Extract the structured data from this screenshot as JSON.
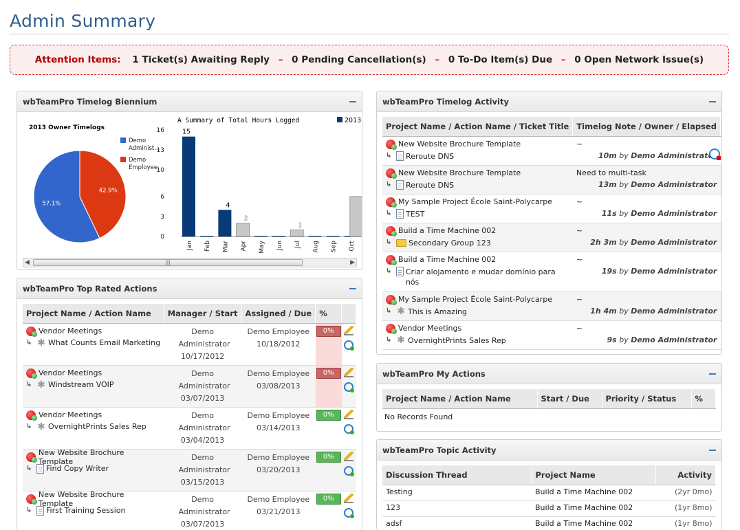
{
  "page": {
    "title": "Admin Summary"
  },
  "attention": {
    "label": "Attention Items:",
    "items": [
      "1 Ticket(s) Awaiting Reply",
      "0 Pending Cancellation(s)",
      "0 To-Do Item(s) Due",
      "0 Open Network Issue(s)"
    ],
    "separator": "–"
  },
  "biennium": {
    "title": "wbTeamPro Timelog Biennium",
    "pie_title": "2013 Owner Timelogs"
  },
  "chart_data": [
    {
      "type": "pie",
      "title": "2013 Owner Timelogs",
      "slices": [
        {
          "label": "Demo Administ...",
          "value": 57.1,
          "display": "57.1%",
          "color": "#3366cc"
        },
        {
          "label": "Demo Employee",
          "value": 42.9,
          "display": "42.9%",
          "color": "#dc3912"
        }
      ],
      "legend": "right"
    },
    {
      "type": "bar",
      "title": "A Summary of Total Hours Logged",
      "categories": [
        "Jan",
        "Feb",
        "Mar",
        "Apr",
        "May",
        "Jun",
        "Jul",
        "Aug",
        "Sep",
        "Oct"
      ],
      "series": [
        {
          "name": "2013",
          "color": "#083a7a",
          "values": [
            15,
            0,
            4,
            0,
            0,
            0,
            0,
            0,
            0,
            0
          ]
        },
        {
          "name": "",
          "color": "#c8c8c8",
          "values": [
            0,
            0,
            0,
            2,
            0,
            0,
            1,
            0,
            0,
            6
          ]
        }
      ],
      "yticks": [
        "0",
        "3",
        "6",
        "10",
        "13",
        "16"
      ],
      "ylim": [
        0,
        16
      ],
      "data_labels": {
        "jan": "15",
        "mar": "4",
        "apr": "2",
        "jul": "1"
      },
      "legend": "top-right"
    }
  ],
  "top_rated": {
    "title": "wbTeamPro Top Rated Actions",
    "headers": [
      "Project Name / Action Name",
      "Manager / Start",
      "Assigned / Due",
      "%"
    ],
    "rows": [
      {
        "project": "Vendor Meetings",
        "action": "What Counts Email Marketing",
        "icon": "gear-icon",
        "manager": "Demo Administrator",
        "start": "10/17/2012",
        "assigned": "Demo Employee",
        "due": "10/18/2012",
        "pct": "0%",
        "status": "red"
      },
      {
        "project": "Vendor Meetings",
        "action": "Windstream VOIP",
        "icon": "gear-icon",
        "manager": "Demo Administrator",
        "start": "03/07/2013",
        "assigned": "Demo Employee",
        "due": "03/08/2013",
        "pct": "0%",
        "status": "red"
      },
      {
        "project": "Vendor Meetings",
        "action": "OvernightPrints Sales Rep",
        "icon": "gear-icon",
        "manager": "Demo Administrator",
        "start": "03/04/2013",
        "assigned": "Demo Employee",
        "due": "03/14/2013",
        "pct": "0%",
        "status": "green"
      },
      {
        "project": "New Website Brochure Template",
        "action": "Find Copy Writer",
        "icon": "doc-icon",
        "manager": "Demo Administrator",
        "start": "03/15/2013",
        "assigned": "Demo Employee",
        "due": "03/20/2013",
        "pct": "0%",
        "status": "green"
      },
      {
        "project": "New Website Brochure Template",
        "action": "First Training Session",
        "icon": "doc-icon",
        "manager": "Demo Administrator",
        "start": "03/07/2013",
        "assigned": "Demo Employee",
        "due": "03/21/2013",
        "pct": "0%",
        "status": "green"
      }
    ]
  },
  "timelog": {
    "title": "wbTeamPro Timelog Activity",
    "headers": [
      "Project Name / Action Name / Ticket Title",
      "Timelog Note / Owner / Elapsed"
    ],
    "by": "by",
    "rows": [
      {
        "project": "New Website Brochure Template",
        "action": "Reroute DNS",
        "icon": "doc-icon",
        "note": "~",
        "elapsed": "10m",
        "owner": "Demo Administrator",
        "extra": "clock"
      },
      {
        "project": "New Website Brochure Template",
        "action": "Reroute DNS",
        "icon": "doc-icon",
        "note": "Need to multi-task",
        "elapsed": "13m",
        "owner": "Demo Administrator"
      },
      {
        "project": "My Sample Project École Saint-Polycarpe",
        "action": "TEST",
        "icon": "doc-icon",
        "note": "~",
        "elapsed": "11s",
        "owner": "Demo Administrator"
      },
      {
        "project": "Build a Time Machine 002",
        "action": "Secondary Group 123",
        "icon": "folder-icon",
        "note": "~",
        "elapsed": "2h 3m",
        "owner": "Demo Administrator"
      },
      {
        "project": "Build a Time Machine 002",
        "action": "Criar alojamento e mudar domínio para nós",
        "icon": "doc-icon",
        "note": "~",
        "elapsed": "19s",
        "owner": "Demo Administrator"
      },
      {
        "project": "My Sample Project École Saint-Polycarpe",
        "action": "This is Amazing",
        "icon": "gear-icon",
        "note": "~",
        "elapsed": "1h 4m",
        "owner": "Demo Administrator"
      },
      {
        "project": "Vendor Meetings",
        "action": "OvernightPrints Sales Rep",
        "icon": "gear-icon",
        "note": "~",
        "elapsed": "9s",
        "owner": "Demo Administrator"
      }
    ]
  },
  "my_actions": {
    "title": "wbTeamPro My Actions",
    "headers": [
      "Project Name / Action Name",
      "Start / Due",
      "Priority / Status",
      "%"
    ],
    "empty": "No Records Found"
  },
  "topic": {
    "title": "wbTeamPro Topic Activity",
    "headers": [
      "Discussion Thread",
      "Project Name",
      "Activity"
    ],
    "rows": [
      {
        "thread": "Testing",
        "project": "Build a Time Machine 002",
        "activity": "(2yr 0mo)"
      },
      {
        "thread": "123",
        "project": "Build a Time Machine 002",
        "activity": "(1yr 8mo)"
      },
      {
        "thread": "adsf",
        "project": "Build a Time Machine 002",
        "activity": "(1yr 8mo)"
      }
    ]
  }
}
